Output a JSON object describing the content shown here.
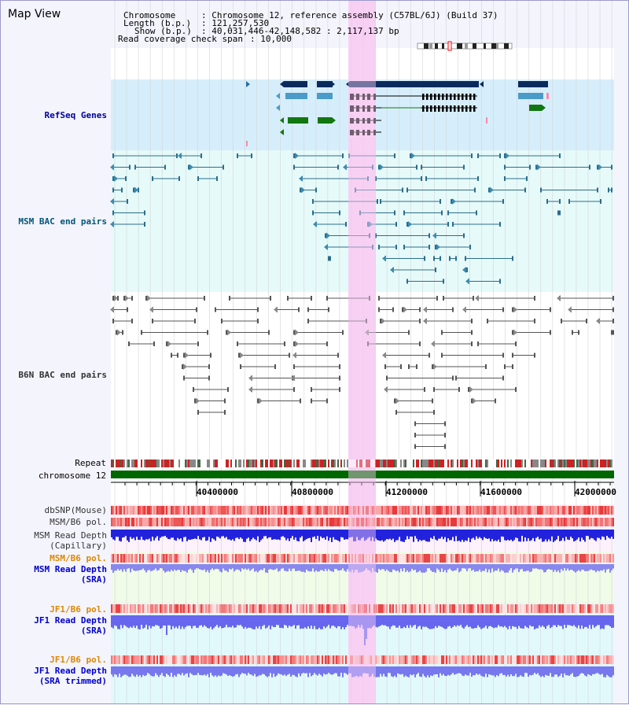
{
  "view_title": "Map View",
  "info": {
    "chromosome_key": "Chromosome",
    "chromosome_val": ": Chromosome 12, reference assembly (C57BL/6J) (Build 37)",
    "length_key": "Length (b.p.)",
    "length_val": ": 121,257,530",
    "show_key": "Show (b.p.)",
    "show_val": ": 40,031,446-42,148,582 : 2,117,137 bp",
    "coverage_key": "Read coverage check span",
    "coverage_val": ": 10,000"
  },
  "tracks": {
    "refseq": "RefSeq Genes",
    "msm_bac": "MSM BAC end pairs",
    "b6n_bac": "B6N BAC end pairs",
    "repeat": "Repeat",
    "chromosome": "chromosome 12",
    "dbsnp": "dbSNP(Mouse)",
    "msm_b6_pol": "MSM/B6 pol.",
    "msm_depth_cap_1": "MSM Read Depth",
    "msm_depth_cap_2": "(Capillary)",
    "msm_b6_pol2": "MSM/B6 pol.",
    "msm_depth_sra_1": "MSM Read Depth",
    "msm_depth_sra_2": "(SRA)",
    "jf1_b6_pol": "JF1/B6 pol.",
    "jf1_depth_sra_1": "JF1 Read Depth",
    "jf1_depth_sra_2": "(SRA)",
    "jf1_b6_pol2": "JF1/B6 pol.",
    "jf1_depth_trim_1": "JF1 Read Depth",
    "jf1_depth_trim_2": "(SRA trimmed)"
  },
  "axis_ticks": [
    "40400000",
    "40800000",
    "41200000",
    "41600000",
    "42000000"
  ],
  "colors": {
    "refseq_label": "#000099",
    "msm_bac_label": "#005577",
    "b6n_bac_label": "#333333",
    "orange_label": "#dd8800",
    "blue_label": "#0000cc",
    "highlight": "#f8d0f4",
    "refseq_bg": "#d6eefb",
    "bac_bg": "#e6fafa",
    "gene_dark": "#0b2a5c",
    "gene_mid": "#4a9bc8",
    "gene_green": "#117711",
    "chromosome_bar": "#006600"
  }
}
